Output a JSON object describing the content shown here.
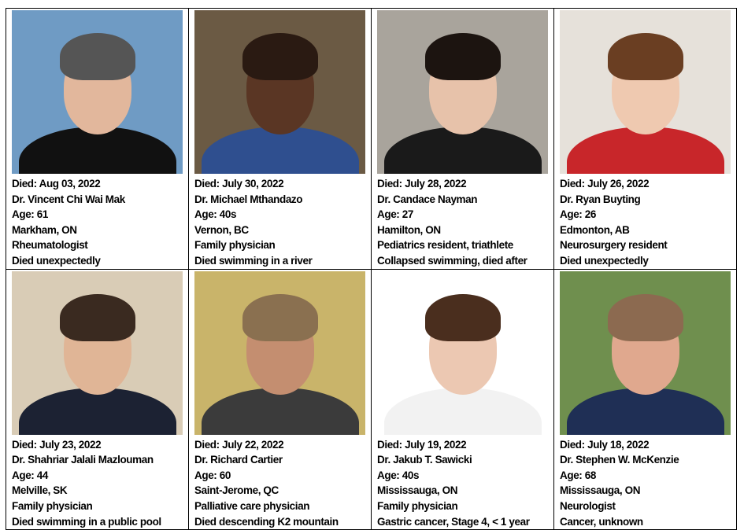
{
  "cards": [
    {
      "died": "Died: Aug 03, 2022",
      "name": "Dr. Vincent Chi Wai Mak",
      "age": "Age: 61",
      "location": "Markham, ON",
      "role": "Rheumatologist",
      "cause": "Died unexpectedly",
      "colors": {
        "bg": "#6f9bc4",
        "hair": "#555",
        "skin": "#e2b79c",
        "body": "#111"
      }
    },
    {
      "died": "Died: July 30, 2022",
      "name": "Dr. Michael Mthandazo",
      "age": "Age: 40s",
      "location": "Vernon, BC",
      "role": "Family physician",
      "cause": "Died swimming in a river",
      "colors": {
        "bg": "#6b5a44",
        "hair": "#2a1a12",
        "skin": "#5a3624",
        "body": "#2f4f8f"
      }
    },
    {
      "died": "Died: July 28, 2022",
      "name": "Dr. Candace Nayman",
      "age": "Age: 27",
      "location": "Hamilton, ON",
      "role": "Pediatrics resident, triathlete",
      "cause": "Collapsed swimming, died after",
      "colors": {
        "bg": "#a9a49c",
        "hair": "#1c1410",
        "skin": "#e7c2aa",
        "body": "#1a1a1a"
      }
    },
    {
      "died": "Died: July 26, 2022",
      "name": "Dr. Ryan Buyting",
      "age": "Age: 26",
      "location": "Edmonton, AB",
      "role": "Neurosurgery resident",
      "cause": "Died unexpectedly",
      "colors": {
        "bg": "#e6e1da",
        "hair": "#6a3e22",
        "skin": "#efc9b0",
        "body": "#c8262a"
      }
    },
    {
      "died": "Died: July 23, 2022",
      "name": "Dr. Shahriar Jalali Mazlouman",
      "age": "Age: 44",
      "location": "Melville, SK",
      "role": "Family physician",
      "cause": "Died swimming in a public pool",
      "colors": {
        "bg": "#d9ccb6",
        "hair": "#3a2a20",
        "skin": "#e0b596",
        "body": "#1c2233"
      }
    },
    {
      "died": "Died: July 22, 2022",
      "name": "Dr. Richard Cartier",
      "age": "Age: 60",
      "location": "Saint-Jerome, QC",
      "role": "Palliative care physician",
      "cause": "Died descending K2 mountain",
      "colors": {
        "bg": "#c9b46a",
        "hair": "#8a7050",
        "skin": "#c48e70",
        "body": "#3b3b3b"
      }
    },
    {
      "died": "Died: July 19, 2022",
      "name": "Dr. Jakub T. Sawicki",
      "age": "Age: 40s",
      "location": "Mississauga, ON",
      "role": "Family physician",
      "cause": "Gastric cancer, Stage 4, < 1 year",
      "colors": {
        "bg": "#ffffff",
        "hair": "#4a2e1e",
        "skin": "#ecc8b2",
        "body": "#f2f2f2"
      }
    },
    {
      "died": "Died: July 18, 2022",
      "name": "Dr. Stephen W. McKenzie",
      "age": "Age: 68",
      "location": "Mississauga, ON",
      "role": "Neurologist",
      "cause": "Cancer, unknown",
      "colors": {
        "bg": "#6f8f4e",
        "hair": "#8c6a50",
        "skin": "#e0a88e",
        "body": "#1f2f55"
      }
    }
  ]
}
